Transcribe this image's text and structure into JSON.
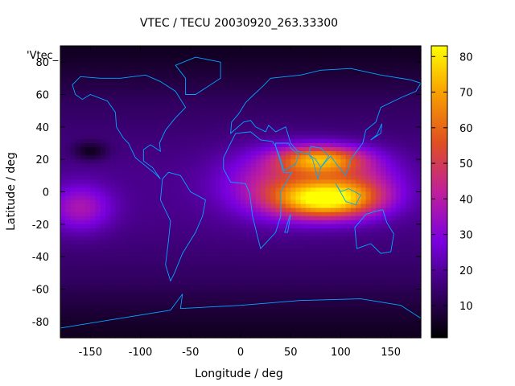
{
  "chart_data": {
    "type": "heatmap",
    "title": "VTEC / TECU 20030920_263.33300",
    "xlabel": "Longitude / deg",
    "ylabel": "Latitude / deg",
    "legend_key": "'Vtec_",
    "xlim": [
      -180,
      180
    ],
    "ylim": [
      -90,
      90
    ],
    "x_ticks": [
      -150,
      -100,
      -50,
      0,
      50,
      100,
      150
    ],
    "y_ticks": [
      -80,
      -60,
      -40,
      -20,
      0,
      20,
      40,
      60,
      80
    ],
    "colorbar": {
      "range": [
        1,
        83
      ],
      "ticks": [
        10,
        20,
        30,
        40,
        50,
        60,
        70,
        80
      ],
      "colormap": [
        "#000000",
        "#3a0070",
        "#7a00e0",
        "#c0209a",
        "#e05020",
        "#f8a000",
        "#ffff00"
      ]
    },
    "grid_resolution": {
      "lon_step": 5,
      "lat_step": 2.5
    },
    "vtec_features": [
      {
        "lon": 85,
        "lat": -5,
        "sigma_lon": 35,
        "sigma_lat": 8,
        "amplitude": 55
      },
      {
        "lon": 80,
        "lat": 20,
        "sigma_lon": 30,
        "sigma_lat": 6,
        "amplitude": 45
      },
      {
        "lon": 40,
        "lat": 5,
        "sigma_lon": 40,
        "sigma_lat": 14,
        "amplitude": 25
      },
      {
        "lon": 120,
        "lat": 5,
        "sigma_lon": 30,
        "sigma_lat": 12,
        "amplitude": 20
      },
      {
        "lon": -160,
        "lat": -10,
        "sigma_lon": 22,
        "sigma_lat": 10,
        "amplitude": 20
      },
      {
        "lon": -150,
        "lat": 25,
        "sigma_lon": 12,
        "sigma_lat": 4,
        "amplitude": -12
      }
    ],
    "background_value": 14,
    "continents_color": "#00a8ff"
  }
}
